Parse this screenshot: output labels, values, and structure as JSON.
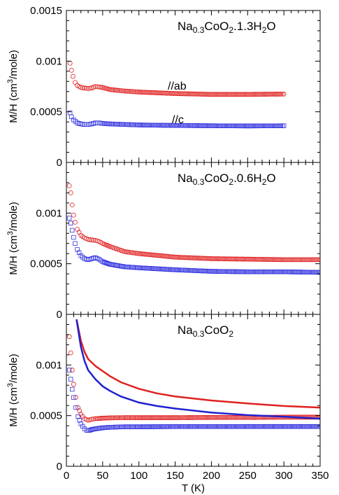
{
  "figure": {
    "xlabel": "T (K)",
    "xticks": [
      "0",
      "50",
      "100",
      "150",
      "200",
      "250",
      "300",
      "350"
    ]
  },
  "chart_data": [
    {
      "type": "scatter",
      "title_parts": [
        "Na",
        "0.3",
        "CoO",
        "2",
        ".1.3H",
        "2",
        "O"
      ],
      "ylabel_parts": [
        "M/H (cm",
        "3",
        "/mole)"
      ],
      "xlabel": "T (K)",
      "xlim": [
        0,
        350
      ],
      "ylim": [
        0,
        0.0015
      ],
      "yticks": [
        "0",
        "0.0005",
        "0.001",
        "0.0015"
      ],
      "annotations": [
        "//ab",
        "//c"
      ],
      "series": [
        {
          "name": "//ab",
          "marker": "circle",
          "color": "#e02020",
          "x": [
            5,
            7,
            9,
            12,
            15,
            20,
            25,
            30,
            35,
            40,
            45,
            50,
            60,
            80,
            100,
            150,
            200,
            250,
            300
          ],
          "y": [
            0.00098,
            0.00091,
            0.00085,
            0.00079,
            0.00076,
            0.00074,
            0.000735,
            0.00073,
            0.000735,
            0.00075,
            0.000745,
            0.00074,
            0.00072,
            0.000705,
            0.000695,
            0.00068,
            0.000672,
            0.000672,
            0.000675
          ]
        },
        {
          "name": "//c",
          "marker": "square",
          "color": "#3030e0",
          "x": [
            5,
            7,
            10,
            15,
            20,
            25,
            30,
            35,
            40,
            45,
            50,
            60,
            80,
            100,
            150,
            200,
            250,
            300
          ],
          "y": [
            0.00049,
            0.00045,
            0.00042,
            0.00039,
            0.00038,
            0.000375,
            0.000375,
            0.00038,
            0.00039,
            0.00039,
            0.000385,
            0.00038,
            0.000375,
            0.00037,
            0.000365,
            0.000362,
            0.00036,
            0.000362
          ]
        }
      ]
    },
    {
      "type": "scatter",
      "title_parts": [
        "Na",
        "0.3",
        "CoO",
        "2",
        ".0.6H",
        "2",
        "O"
      ],
      "ylabel_parts": [
        "M/H (cm",
        "3",
        "/mole)"
      ],
      "xlabel": "T (K)",
      "xlim": [
        0,
        350
      ],
      "ylim": [
        0,
        0.0015
      ],
      "yticks": [
        "0",
        "0.0005",
        "0.001"
      ],
      "series": [
        {
          "name": "",
          "marker": "circle",
          "color": "#e02020",
          "x": [
            4,
            6,
            8,
            10,
            12,
            15,
            20,
            25,
            30,
            35,
            40,
            45,
            50,
            60,
            80,
            100,
            150,
            200,
            250,
            300,
            350
          ],
          "y": [
            0.00127,
            0.0012,
            0.00108,
            0.00098,
            0.00091,
            0.00084,
            0.00078,
            0.000755,
            0.00074,
            0.000735,
            0.00073,
            0.00072,
            0.0007,
            0.00067,
            0.00062,
            0.0006,
            0.000565,
            0.00055,
            0.000545,
            0.00054,
            0.00054
          ]
        },
        {
          "name": "",
          "marker": "square",
          "color": "#3030e0",
          "x": [
            4,
            6,
            8,
            10,
            12,
            15,
            20,
            25,
            30,
            35,
            40,
            45,
            50,
            60,
            80,
            100,
            150,
            200,
            250,
            300,
            350
          ],
          "y": [
            0.00095,
            0.0009,
            0.00083,
            0.00076,
            0.0007,
            0.00064,
            0.00058,
            0.00055,
            0.00054,
            0.00055,
            0.00056,
            0.000545,
            0.00052,
            0.000495,
            0.00047,
            0.00046,
            0.00044,
            0.000425,
            0.00042,
            0.00042,
            0.000415
          ]
        }
      ]
    },
    {
      "type": "scatter",
      "title_parts": [
        "Na",
        "0.3",
        "CoO",
        "2"
      ],
      "ylabel_parts": [
        "M/H (cm",
        "3",
        "/mole)"
      ],
      "xlabel": "T (K)",
      "xlim": [
        0,
        350
      ],
      "ylim": [
        0,
        0.0015
      ],
      "yticks": [
        "0",
        "0.0005",
        "0.001"
      ],
      "series": [
        {
          "name": "",
          "marker": "circle",
          "color": "#e02020",
          "x": [
            4,
            6,
            8,
            10,
            13,
            16,
            20,
            25,
            30,
            35,
            40,
            50,
            60,
            80,
            100,
            150,
            200,
            250,
            300,
            350
          ],
          "y": [
            0.00128,
            0.00112,
            0.00095,
            0.00081,
            0.00068,
            0.00058,
            0.000515,
            0.00047,
            0.000455,
            0.000465,
            0.00047,
            0.000475,
            0.000478,
            0.00048,
            0.00048,
            0.00048,
            0.000482,
            0.000482,
            0.000485,
            0.000485
          ]
        },
        {
          "name": "",
          "marker": "square",
          "color": "#3030e0",
          "x": [
            4,
            6,
            8,
            10,
            13,
            16,
            20,
            25,
            28,
            32,
            36,
            40,
            50,
            60,
            80,
            100,
            150,
            200,
            250,
            300,
            350
          ],
          "y": [
            0.00095,
            0.00086,
            0.00076,
            0.00068,
            0.00058,
            0.00049,
            0.00042,
            0.00037,
            0.000355,
            0.000355,
            0.000365,
            0.00037,
            0.00038,
            0.000385,
            0.00039,
            0.00039,
            0.000392,
            0.000392,
            0.000393,
            0.000393,
            0.000393
          ]
        },
        {
          "name": "",
          "marker": "line",
          "color": "#e02020",
          "x": [
            14,
            20,
            25,
            30,
            40,
            50,
            60,
            75,
            100,
            125,
            150,
            200,
            250,
            300,
            350
          ],
          "y": [
            0.00145,
            0.00124,
            0.00113,
            0.00106,
            0.00099,
            0.00094,
            0.00089,
            0.00083,
            0.000765,
            0.00072,
            0.00069,
            0.00065,
            0.00062,
            0.000595,
            0.00058
          ]
        },
        {
          "name": "",
          "marker": "line",
          "color": "#2020d0",
          "x": [
            14,
            20,
            25,
            30,
            40,
            50,
            60,
            75,
            100,
            125,
            150,
            200,
            250,
            300,
            350
          ],
          "y": [
            0.00145,
            0.00118,
            0.00104,
            0.00095,
            0.00086,
            0.00079,
            0.000745,
            0.00069,
            0.00063,
            0.000595,
            0.00057,
            0.00053,
            0.000505,
            0.00049,
            0.00047
          ]
        }
      ]
    }
  ]
}
